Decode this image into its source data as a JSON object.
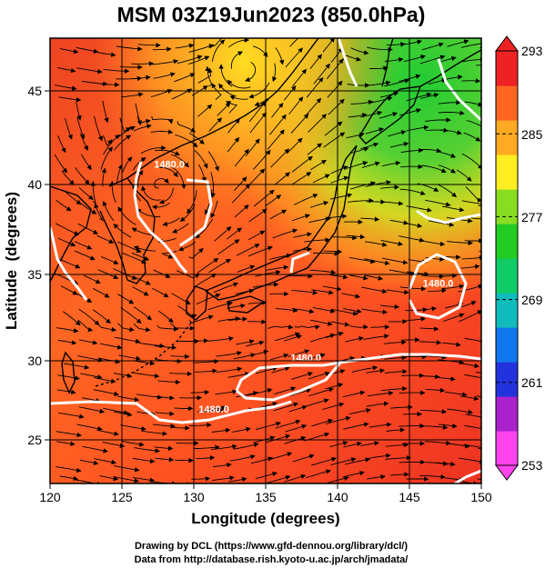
{
  "chart_data": {
    "type": "heatmap",
    "title": "MSM 03Z19Jun2023 (850.0hPa)",
    "xlabel": "Longitude (degrees)",
    "ylabel": "Latitude  (degrees)",
    "xlim": [
      120,
      150
    ],
    "ylim": [
      22.5,
      47.6
    ],
    "x_ticks": [
      120,
      125,
      130,
      135,
      140,
      145,
      150
    ],
    "y_ticks": [
      25,
      30,
      35,
      40,
      45
    ],
    "grid": true,
    "colorbar": {
      "min": 253,
      "max": 293,
      "ticks": [
        253,
        261,
        269,
        277,
        285,
        293
      ],
      "colors": [
        "#ff44ee",
        "#aa22cc",
        "#2233dd",
        "#1177ee",
        "#11bbbb",
        "#11cc66",
        "#22cc22",
        "#88dd22",
        "#ffee22",
        "#ffaa22",
        "#ff6622",
        "#ee2222"
      ]
    },
    "contours": [
      {
        "label": "1480.0",
        "lon": 128.3,
        "lat": 40.3
      },
      {
        "label": "1480.0",
        "lon": 137.8,
        "lat": 29.4
      },
      {
        "label": "1480.0",
        "lon": 131.4,
        "lat": 26.5
      },
      {
        "label": "1480.0",
        "lon": 147.0,
        "lat": 33.6
      }
    ],
    "overlays": [
      "streamlines",
      "coastlines"
    ]
  },
  "credits": [
    "Drawing by DCL (https://www.gfd-dennou.org/library/dcl/)",
    "Data from http://database.rish.kyoto-u.ac.jp/arch/jmadata/"
  ]
}
